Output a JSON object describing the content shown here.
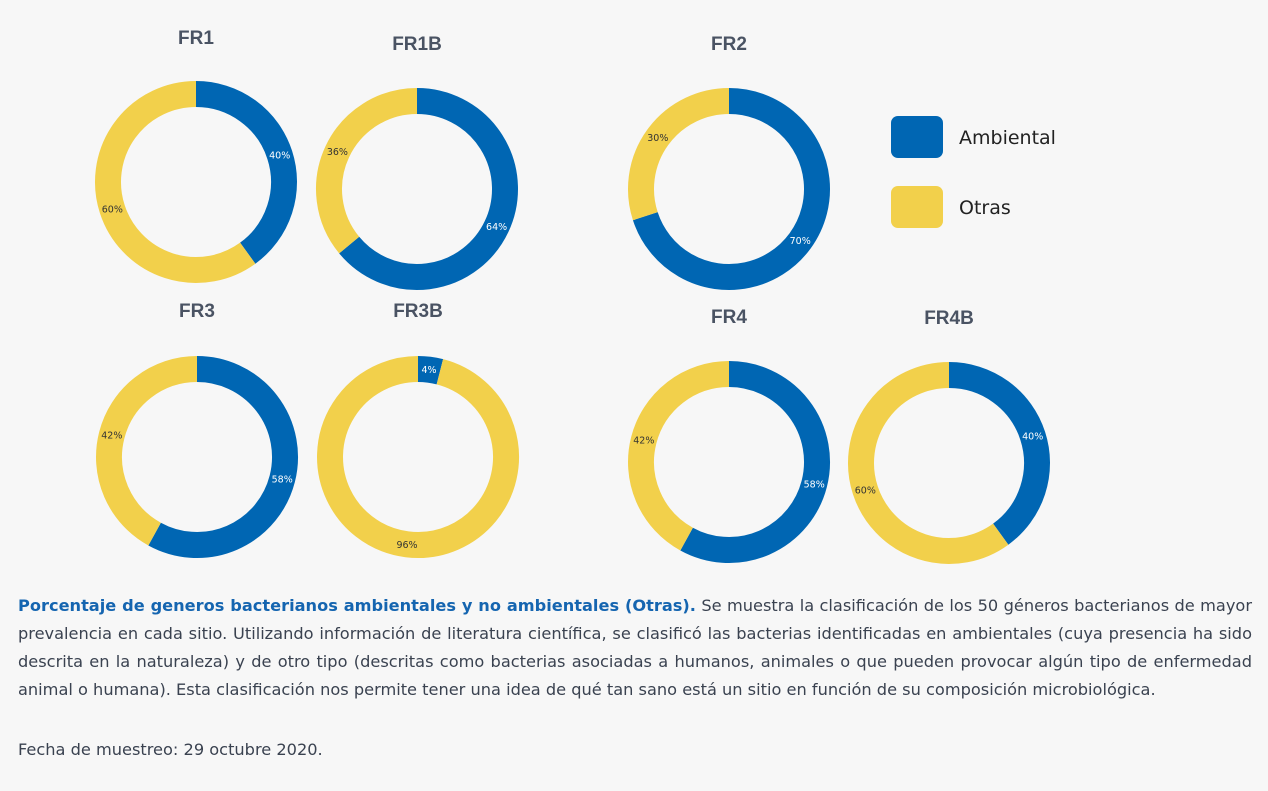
{
  "colors": {
    "ambiental": "#0066b3",
    "otras": "#f2d04b"
  },
  "legend": [
    {
      "key": "ambiental",
      "label": "Ambiental"
    },
    {
      "key": "otras",
      "label": "Otras"
    }
  ],
  "chart_data": [
    {
      "type": "pie",
      "title": "FR1",
      "series": [
        {
          "name": "Ambiental",
          "value": 40,
          "label": "40%"
        },
        {
          "name": "Otras",
          "value": 60,
          "label": "60%"
        }
      ]
    },
    {
      "type": "pie",
      "title": "FR1B",
      "series": [
        {
          "name": "Ambiental",
          "value": 64,
          "label": "64%"
        },
        {
          "name": "Otras",
          "value": 36,
          "label": "36%"
        }
      ]
    },
    {
      "type": "pie",
      "title": "FR2",
      "series": [
        {
          "name": "Ambiental",
          "value": 70,
          "label": "70%"
        },
        {
          "name": "Otras",
          "value": 30,
          "label": "30%"
        }
      ]
    },
    {
      "type": "pie",
      "title": "FR3",
      "series": [
        {
          "name": "Ambiental",
          "value": 58,
          "label": "58%"
        },
        {
          "name": "Otras",
          "value": 42,
          "label": "42%"
        }
      ]
    },
    {
      "type": "pie",
      "title": "FR3B",
      "series": [
        {
          "name": "Ambiental",
          "value": 4,
          "label": "4%"
        },
        {
          "name": "Otras",
          "value": 96,
          "label": "96%"
        }
      ]
    },
    {
      "type": "pie",
      "title": "FR4",
      "series": [
        {
          "name": "Ambiental",
          "value": 58,
          "label": "58%"
        },
        {
          "name": "Otras",
          "value": 42,
          "label": "42%"
        }
      ]
    },
    {
      "type": "pie",
      "title": "FR4B",
      "series": [
        {
          "name": "Ambiental",
          "value": 40,
          "label": "40%"
        },
        {
          "name": "Otras",
          "value": 60,
          "label": "60%"
        }
      ]
    }
  ],
  "caption": {
    "lead": "Porcentaje de generos bacterianos ambientales y no ambientales (Otras).",
    "body": " Se muestra la clasificación de los 50 géneros bacterianos de mayor prevalencia en cada sitio. Utilizando información de literatura científica, se clasificó las bacterias identificadas en ambientales (cuya presencia ha sido descrita en la naturaleza) y de otro tipo (descritas como bacterias asociadas a humanos, animales o que pueden provocar algún tipo de enfermedad animal o humana). Esta clasificación nos permite tener una idea de qué tan sano está un sitio en función de su composición microbiológica.",
    "date": "Fecha de muestreo: 29 octubre 2020."
  }
}
